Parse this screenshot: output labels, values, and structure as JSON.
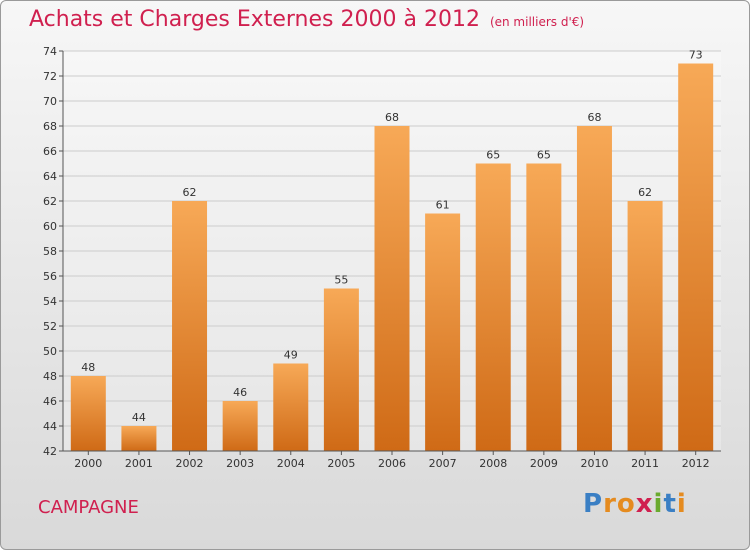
{
  "title": "Achats et Charges Externes 2000 à 2012",
  "subtitle": "(en milliers d'€)",
  "location": "CAMPAGNE",
  "logo": {
    "letters": [
      "P",
      "r",
      "o",
      "x",
      "i",
      "t",
      "i"
    ],
    "colors": [
      "#3a7fc4",
      "#e58b1f",
      "#e58b1f",
      "#d0204f",
      "#6aaa2e",
      "#3a7fc4",
      "#e58b1f"
    ]
  },
  "colors": {
    "bar_top": "#f7a957",
    "bar_bottom": "#cf6a16",
    "accent": "#d0204f"
  },
  "chart_data": {
    "type": "bar",
    "categories": [
      "2000",
      "2001",
      "2002",
      "2003",
      "2004",
      "2005",
      "2006",
      "2007",
      "2008",
      "2009",
      "2010",
      "2011",
      "2012"
    ],
    "values": [
      48,
      44,
      62,
      46,
      49,
      55,
      68,
      61,
      65,
      65,
      68,
      62,
      73
    ],
    "ylim": [
      42,
      74
    ],
    "yticks": [
      42,
      44,
      46,
      48,
      50,
      52,
      54,
      56,
      58,
      60,
      62,
      64,
      66,
      68,
      70,
      72,
      74
    ],
    "grid": true
  }
}
